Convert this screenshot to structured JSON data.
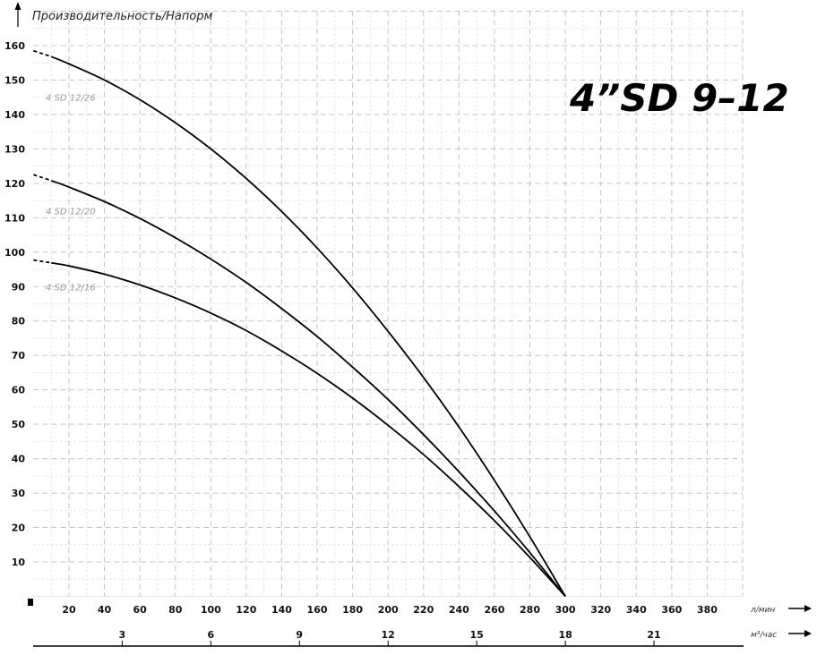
{
  "chart_data": {
    "type": "line",
    "title": "4”SD 9–12",
    "ylabel": "Производительность/Напорм",
    "xlabel": "л/мин",
    "x2label": "м³/час",
    "xlim": [
      0,
      400
    ],
    "ylim": [
      0,
      170
    ],
    "grid": true,
    "xticks": [
      20,
      40,
      60,
      80,
      100,
      120,
      140,
      160,
      180,
      200,
      220,
      240,
      260,
      280,
      300,
      320,
      340,
      360,
      380
    ],
    "yticks": [
      10,
      20,
      30,
      40,
      50,
      60,
      70,
      80,
      90,
      100,
      110,
      120,
      130,
      140,
      150,
      160
    ],
    "x2ticks": [
      3,
      6,
      9,
      12,
      15,
      18,
      21
    ],
    "x": [
      0,
      10,
      20,
      40,
      60,
      80,
      100,
      120,
      140,
      160,
      180,
      200,
      220,
      240,
      260,
      280,
      300
    ],
    "dashed_until_x": 10,
    "series": [
      {
        "name": "4 SD 12/26",
        "label_at_y": 145,
        "values": [
          158.5,
          156.8,
          154.7,
          150.0,
          144.3,
          137.6,
          130.0,
          121.4,
          111.8,
          101.2,
          89.6,
          77.0,
          63.6,
          49.2,
          33.7,
          17.3,
          0
        ]
      },
      {
        "name": "4 SD 12/20",
        "label_at_y": 112,
        "values": [
          122.5,
          120.8,
          118.9,
          114.7,
          109.8,
          104.2,
          98.0,
          91.2,
          83.6,
          75.5,
          66.6,
          57.2,
          47.0,
          36.2,
          24.8,
          12.7,
          0
        ]
      },
      {
        "name": "4 SD 12/16",
        "label_at_y": 90,
        "values": [
          97.7,
          96.9,
          96.0,
          93.6,
          90.5,
          86.7,
          82.3,
          77.2,
          71.3,
          64.8,
          57.6,
          49.7,
          41.2,
          31.9,
          22.0,
          11.3,
          0
        ]
      }
    ],
    "colors": {
      "curve": "#000000",
      "grid": "#c8c8c8",
      "series_label": "#999999"
    }
  }
}
